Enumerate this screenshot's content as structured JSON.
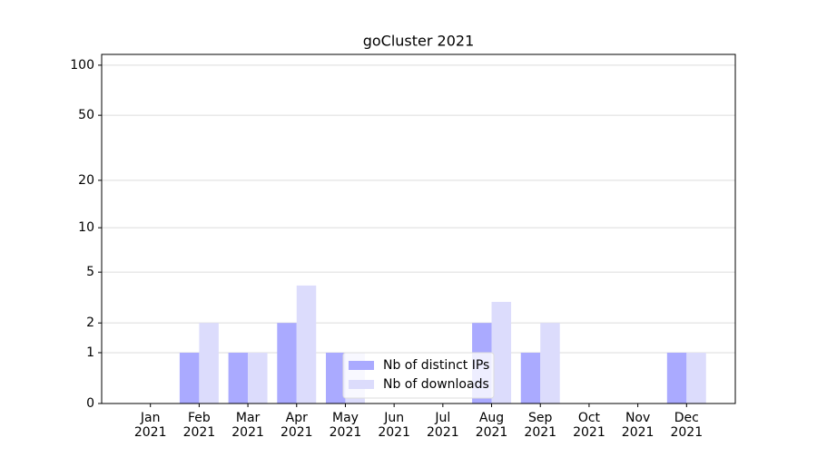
{
  "chart_data": {
    "type": "bar",
    "title": "goCluster 2021",
    "scale": "log1p",
    "categories": [
      [
        "Jan",
        "2021"
      ],
      [
        "Feb",
        "2021"
      ],
      [
        "Mar",
        "2021"
      ],
      [
        "Apr",
        "2021"
      ],
      [
        "May",
        "2021"
      ],
      [
        "Jun",
        "2021"
      ],
      [
        "Jul",
        "2021"
      ],
      [
        "Aug",
        "2021"
      ],
      [
        "Sep",
        "2021"
      ],
      [
        "Oct",
        "2021"
      ],
      [
        "Nov",
        "2021"
      ],
      [
        "Dec",
        "2021"
      ]
    ],
    "series": [
      {
        "name": "Nb of distinct IPs",
        "color": "#aaaaff",
        "values": [
          0,
          1,
          1,
          2,
          1,
          0,
          0,
          2,
          1,
          0,
          0,
          1
        ]
      },
      {
        "name": "Nb of downloads",
        "color": "#dcdcfc",
        "values": [
          0,
          2,
          1,
          4,
          1,
          0,
          0,
          3,
          2,
          0,
          0,
          1
        ]
      }
    ],
    "ylim": [
      0,
      116
    ],
    "yticks": [
      0,
      1,
      2,
      5,
      10,
      20,
      50,
      100
    ],
    "grid": true,
    "legend": "lower center"
  }
}
